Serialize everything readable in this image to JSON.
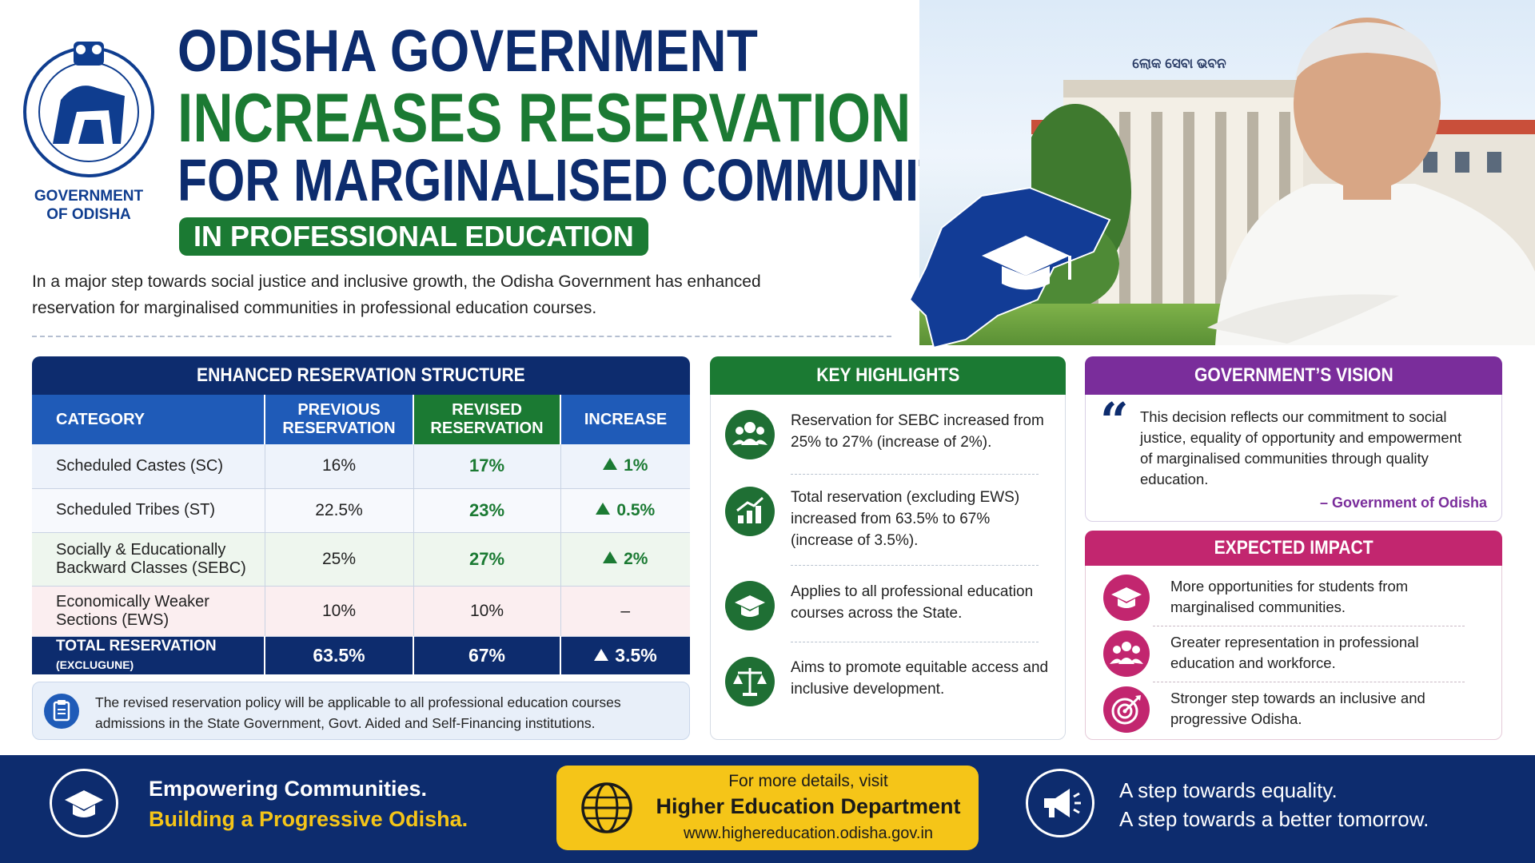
{
  "emblem": {
    "caption_line1": "GOVERNMENT",
    "caption_line2": "OF ODISHA"
  },
  "title": {
    "line1": "ODISHA GOVERNMENT",
    "line2": "INCREASES RESERVATION",
    "line3": "FOR MARGINALISED COMMUNITIES",
    "pill": "IN PROFESSIONAL EDUCATION"
  },
  "intro": "In a major step towards social justice and inclusive growth, the Odisha Government has enhanced reservation for marginalised communities in professional education courses.",
  "hero": {
    "building_sign": "ଲୋକ ସେବା ଭବନ"
  },
  "table": {
    "heading": "ENHANCED RESERVATION STRUCTURE",
    "columns": {
      "category": "CATEGORY",
      "previous": "PREVIOUS RESERVATION",
      "revised": "REVISED RESERVATION",
      "increase": "INCREASE"
    },
    "rows": [
      {
        "category": "Scheduled Castes (SC)",
        "previous": "16%",
        "revised": "17%",
        "increase": "1%"
      },
      {
        "category": "Scheduled Tribes (ST)",
        "previous": "22.5%",
        "revised": "23%",
        "increase": "0.5%"
      },
      {
        "category": "Socially & Educationally Backward Classes (SEBC)",
        "previous": "25%",
        "revised": "27%",
        "increase": "2%"
      },
      {
        "category": "Economically Weaker Sections (EWS)",
        "previous": "10%",
        "revised": "10%",
        "increase": "–"
      }
    ],
    "total": {
      "label": "TOTAL RESERVATION",
      "label_suffix": "(EXCLUGUNE)",
      "previous": "63.5%",
      "revised": "67%",
      "increase": "3.5%"
    }
  },
  "note": "The revised reservation policy will be applicable to all professional education courses admissions in the State Government, Govt. Aided and Self-Financing institutions.",
  "highlights": {
    "heading": "KEY HIGHLIGHTS",
    "items": [
      {
        "icon": "community-icon",
        "text": "Reservation for SEBC increased from 25% to 27% (increase of 2%)."
      },
      {
        "icon": "growth-chart-icon",
        "text": "Total reservation (excluding EWS) increased from 63.5% to 67% (increase of 3.5%)."
      },
      {
        "icon": "graduation-cap-icon",
        "text": "Applies to all professional education courses across the State."
      },
      {
        "icon": "scales-icon",
        "text": "Aims to promote equitable access and inclusive development."
      }
    ]
  },
  "vision": {
    "heading": "GOVERNMENT’S VISION",
    "quote": "This decision reflects our commitment to social justice, equality of opportunity and empowerment of marginalised communities through quality education.",
    "attribution": "– Government of Odisha"
  },
  "impact": {
    "heading": "EXPECTED IMPACT",
    "items": [
      {
        "icon": "graduation-cap-icon",
        "text": "More opportunities for students from marginalised communities."
      },
      {
        "icon": "group-icon",
        "text": "Greater representation in professional education and workforce."
      },
      {
        "icon": "target-icon",
        "text": "Stronger step towards an inclusive and progressive Odisha."
      }
    ]
  },
  "footer": {
    "left_line1": "Empowering Communities.",
    "left_line2": "Building a Progressive Odisha.",
    "mid_line1": "For more details, visit",
    "mid_line2": "Higher Education Department",
    "mid_line3": "www.highereducation.odisha.gov.in",
    "right_line1": "A step towards equality.",
    "right_line2": "A step towards a better tomorrow."
  },
  "colors": {
    "navy": "#0d2c6e",
    "green": "#1b7a33",
    "purple": "#7a2d9b",
    "magenta": "#c2266f",
    "yellow": "#f5c518"
  }
}
